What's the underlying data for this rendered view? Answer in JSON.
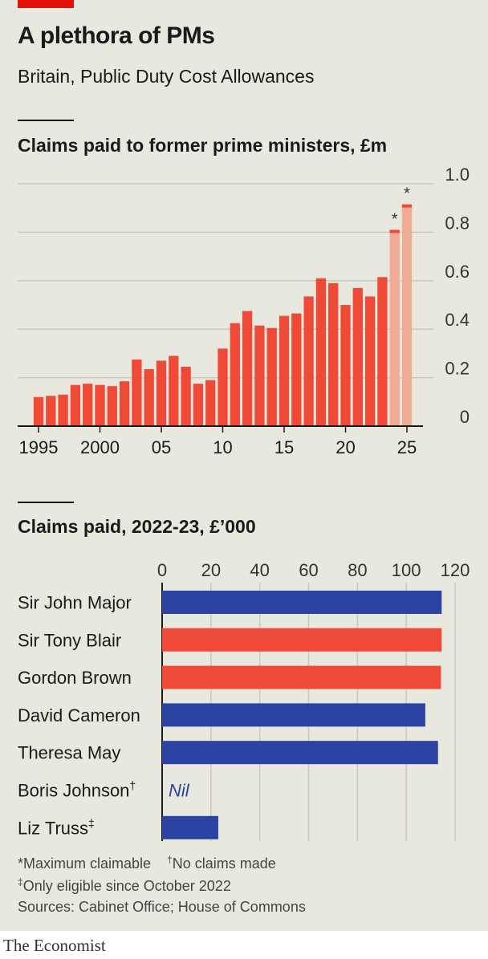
{
  "header": {
    "title": "A plethora of PMs",
    "subtitle": "Britain, Public Duty Cost Allowances"
  },
  "colors": {
    "red": "#ef4a37",
    "pale_red": "#f0ab94",
    "blue": "#2b44a3",
    "grid": "#c9c8c0",
    "background": "#e9e8df"
  },
  "chart_data": [
    {
      "type": "bar",
      "title": "Claims paid to former prime ministers, £m",
      "categories": [
        1995,
        1996,
        1997,
        1998,
        1999,
        2000,
        2001,
        2002,
        2003,
        2004,
        2005,
        2006,
        2007,
        2008,
        2009,
        2010,
        2011,
        2012,
        2013,
        2014,
        2015,
        2016,
        2017,
        2018,
        2019,
        2020,
        2021,
        2022,
        2023,
        2024,
        2025
      ],
      "values": [
        0.12,
        0.125,
        0.13,
        0.17,
        0.175,
        0.17,
        0.165,
        0.185,
        0.275,
        0.235,
        0.27,
        0.29,
        0.245,
        0.175,
        0.19,
        0.32,
        0.425,
        0.475,
        0.415,
        0.405,
        0.455,
        0.465,
        0.535,
        0.61,
        0.59,
        0.5,
        0.57,
        0.535,
        0.615,
        0.81,
        0.915
      ],
      "estimated": [
        false,
        false,
        false,
        false,
        false,
        false,
        false,
        false,
        false,
        false,
        false,
        false,
        false,
        false,
        false,
        false,
        false,
        false,
        false,
        false,
        false,
        false,
        false,
        false,
        false,
        false,
        false,
        false,
        false,
        true,
        true
      ],
      "estimate_marker": "*",
      "xticks": [
        {
          "year": 1995,
          "label": "1995"
        },
        {
          "year": 2000,
          "label": "2000"
        },
        {
          "year": 2005,
          "label": "05"
        },
        {
          "year": 2010,
          "label": "10"
        },
        {
          "year": 2015,
          "label": "15"
        },
        {
          "year": 2020,
          "label": "20"
        },
        {
          "year": 2025,
          "label": "25"
        }
      ],
      "yticks": [
        {
          "value": 0,
          "label": "0"
        },
        {
          "value": 0.2,
          "label": "0.2"
        },
        {
          "value": 0.4,
          "label": "0.4"
        },
        {
          "value": 0.6,
          "label": "0.6"
        },
        {
          "value": 0.8,
          "label": "0.8"
        },
        {
          "value": 1.0,
          "label": "1.0"
        }
      ],
      "ylim": [
        0,
        1.0
      ],
      "grid": true,
      "yaxis_side": "right"
    },
    {
      "type": "bar",
      "orientation": "horizontal",
      "title": "Claims paid, 2022-23, £’000",
      "categories": [
        "Sir John Major",
        "Sir Tony Blair",
        "Gordon Brown",
        "David Cameron",
        "Theresa May",
        "Boris Johnson",
        "Liz Truss"
      ],
      "marks": [
        "",
        "",
        "",
        "",
        "",
        "†",
        "‡"
      ],
      "values": [
        114.5,
        114.5,
        114.2,
        107.8,
        113.0,
        0,
        23.0
      ],
      "party": [
        "conservative",
        "labour",
        "labour",
        "conservative",
        "conservative",
        "conservative",
        "conservative"
      ],
      "nil_label": "Nil",
      "xticks": [
        {
          "value": 0,
          "label": "0"
        },
        {
          "value": 20,
          "label": "20"
        },
        {
          "value": 40,
          "label": "40"
        },
        {
          "value": 60,
          "label": "60"
        },
        {
          "value": 80,
          "label": "80"
        },
        {
          "value": 100,
          "label": "100"
        },
        {
          "value": 120,
          "label": "120"
        }
      ],
      "xlim": [
        0,
        120
      ],
      "grid": true
    }
  ],
  "footnotes": {
    "max_mark": "*",
    "max_text": "Maximum claimable",
    "no_claims_mark": "†",
    "no_claims_text": "No claims made",
    "eligible_mark": "‡",
    "eligible_text": "Only eligible since October 2022",
    "sources": "Sources: Cabinet Office; House of Commons"
  },
  "brand": "The Economist"
}
